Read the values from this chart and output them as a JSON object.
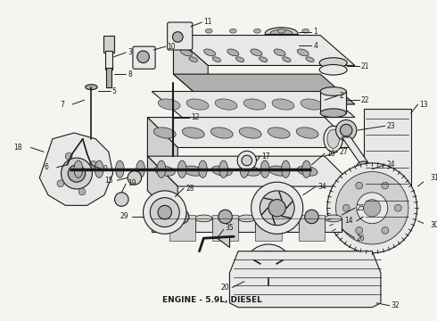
{
  "title": "ENGINE - 5.9L, DIESEL",
  "title_fontsize": 6.5,
  "title_fontweight": "bold",
  "background_color": "#f5f5f0",
  "line_color": "#1a1a1a",
  "fill_light": "#e8e8e8",
  "fill_mid": "#d0d0d0",
  "fill_dark": "#b0b0b0",
  "figsize": [
    4.9,
    3.6
  ],
  "dpi": 100
}
